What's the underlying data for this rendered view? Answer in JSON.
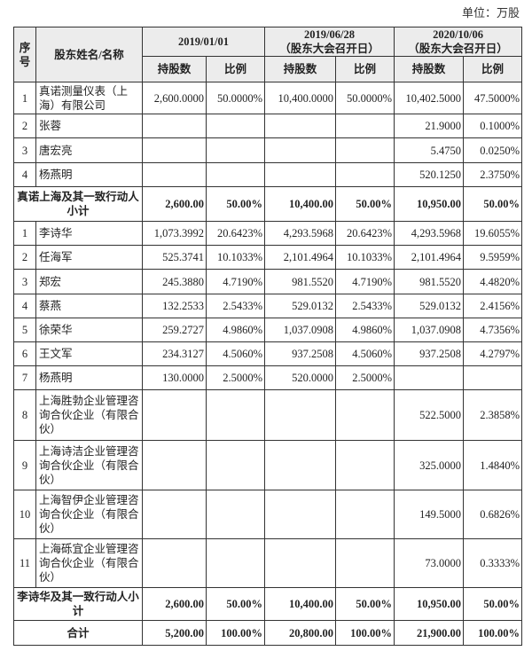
{
  "unit": "单位：万股",
  "header": {
    "index": "序号",
    "name": "股东姓名/名称",
    "periods": [
      {
        "date": "2019/01/01",
        "note": ""
      },
      {
        "date": "2019/06/28",
        "note": "（股东大会召开日）"
      },
      {
        "date": "2020/10/06",
        "note": "（股东大会召开日）"
      }
    ],
    "shares": "持股数",
    "ratio": "比例"
  },
  "rows": [
    {
      "type": "item",
      "index": "1",
      "name": "真诺测量仪表（上海）有限公司",
      "values": [
        "2,600.0000",
        "50.0000%",
        "10,400.0000",
        "50.0000%",
        "10,402.5000",
        "47.5000%"
      ]
    },
    {
      "type": "item",
      "index": "2",
      "name": "张蓉",
      "values": [
        "",
        "",
        "",
        "",
        "21.9000",
        "0.1000%"
      ]
    },
    {
      "type": "item",
      "index": "3",
      "name": "唐宏亮",
      "values": [
        "",
        "",
        "",
        "",
        "5.4750",
        "0.0250%"
      ]
    },
    {
      "type": "item",
      "index": "4",
      "name": "杨燕明",
      "values": [
        "",
        "",
        "",
        "",
        "520.1250",
        "2.3750%"
      ]
    },
    {
      "type": "sub",
      "name": "真诺上海及其一致行动人小计",
      "values": [
        "2,600.00",
        "50.00%",
        "10,400.00",
        "50.00%",
        "10,950.00",
        "50.00%"
      ]
    },
    {
      "type": "item",
      "index": "1",
      "name": "李诗华",
      "values": [
        "1,073.3992",
        "20.6423%",
        "4,293.5968",
        "20.6423%",
        "4,293.5968",
        "19.6055%"
      ]
    },
    {
      "type": "item",
      "index": "2",
      "name": "任海军",
      "values": [
        "525.3741",
        "10.1033%",
        "2,101.4964",
        "10.1033%",
        "2,101.4964",
        "9.5959%"
      ]
    },
    {
      "type": "item",
      "index": "3",
      "name": "郑宏",
      "values": [
        "245.3880",
        "4.7190%",
        "981.5520",
        "4.7190%",
        "981.5520",
        "4.4820%"
      ]
    },
    {
      "type": "item",
      "index": "4",
      "name": "蔡燕",
      "values": [
        "132.2533",
        "2.5433%",
        "529.0132",
        "2.5433%",
        "529.0132",
        "2.4156%"
      ]
    },
    {
      "type": "item",
      "index": "5",
      "name": "徐荣华",
      "values": [
        "259.2727",
        "4.9860%",
        "1,037.0908",
        "4.9860%",
        "1,037.0908",
        "4.7356%"
      ]
    },
    {
      "type": "item",
      "index": "6",
      "name": "王文军",
      "values": [
        "234.3127",
        "4.5060%",
        "937.2508",
        "4.5060%",
        "937.2508",
        "4.2797%"
      ]
    },
    {
      "type": "item",
      "index": "7",
      "name": "杨燕明",
      "values": [
        "130.0000",
        "2.5000%",
        "520.0000",
        "2.5000%",
        "",
        ""
      ]
    },
    {
      "type": "item",
      "index": "8",
      "name": "上海胜勃企业管理咨询合伙企业（有限合伙）",
      "values": [
        "",
        "",
        "",
        "",
        "522.5000",
        "2.3858%"
      ]
    },
    {
      "type": "item",
      "index": "9",
      "name": "上海诗洁企业管理咨询合伙企业（有限合伙）",
      "values": [
        "",
        "",
        "",
        "",
        "325.0000",
        "1.4840%"
      ]
    },
    {
      "type": "item",
      "index": "10",
      "name": "上海智伊企业管理咨询合伙企业（有限合伙）",
      "values": [
        "",
        "",
        "",
        "",
        "149.5000",
        "0.6826%"
      ]
    },
    {
      "type": "item",
      "index": "11",
      "name": "上海砾宜企业管理咨询合伙企业（有限合伙）",
      "values": [
        "",
        "",
        "",
        "",
        "73.0000",
        "0.3333%"
      ]
    },
    {
      "type": "sub",
      "name": "李诗华及其一致行动人小计",
      "values": [
        "2,600.00",
        "50.00%",
        "10,400.00",
        "50.00%",
        "10,950.00",
        "50.00%"
      ]
    },
    {
      "type": "sub",
      "name": "合计",
      "values": [
        "5,200.00",
        "100.00%",
        "20,800.00",
        "100.00%",
        "21,900.00",
        "100.00%"
      ]
    }
  ]
}
